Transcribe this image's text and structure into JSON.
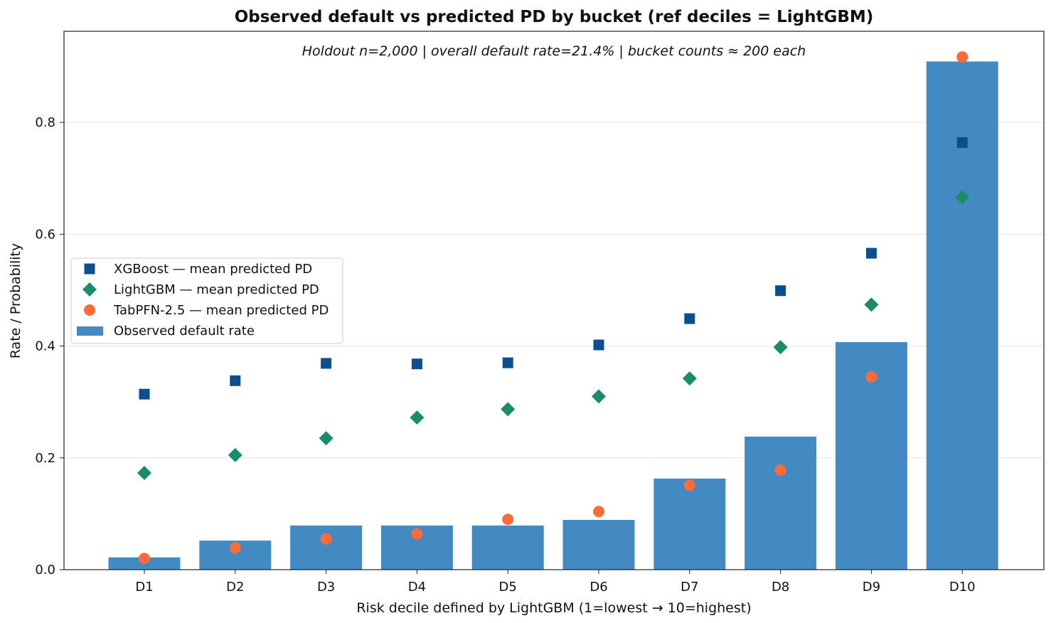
{
  "chart_data": {
    "type": "bar",
    "title": "Observed default vs predicted PD by bucket (ref deciles = LightGBM)",
    "annotation": "Holdout n=2,000 | overall default rate=21.4% | bucket counts ≈ 200 each",
    "xlabel": "Risk decile defined by LightGBM (1=lowest → 10=highest)",
    "ylabel": "Rate / Probability",
    "ylim": [
      0,
      0.963
    ],
    "yticks": [
      0.0,
      0.2,
      0.4,
      0.6,
      0.8
    ],
    "ytick_labels": [
      "0.0",
      "0.2",
      "0.4",
      "0.6",
      "0.8"
    ],
    "grid": "horizontal",
    "legend_position": "center-left",
    "categories": [
      "D1",
      "D2",
      "D3",
      "D4",
      "D5",
      "D6",
      "D7",
      "D8",
      "D9",
      "D10"
    ],
    "series": [
      {
        "name": "XGBoost — mean predicted PD",
        "kind": "scatter",
        "marker": "square",
        "color": "#0b4f8c",
        "values": [
          0.314,
          0.338,
          0.369,
          0.368,
          0.37,
          0.402,
          0.449,
          0.499,
          0.566,
          0.764
        ]
      },
      {
        "name": "LightGBM — mean predicted PD",
        "kind": "scatter",
        "marker": "diamond",
        "color": "#1a8c6a",
        "values": [
          0.173,
          0.205,
          0.235,
          0.272,
          0.287,
          0.31,
          0.342,
          0.398,
          0.474,
          0.666
        ]
      },
      {
        "name": "TabPFN-2.5 — mean predicted PD",
        "kind": "scatter",
        "marker": "circle",
        "color": "#ff6b38",
        "values": [
          0.02,
          0.039,
          0.055,
          0.064,
          0.09,
          0.104,
          0.151,
          0.178,
          0.345,
          0.917
        ]
      },
      {
        "name": "Observed default rate",
        "kind": "bar",
        "color": "#438ac3",
        "values": [
          0.022,
          0.052,
          0.079,
          0.079,
          0.079,
          0.089,
          0.163,
          0.238,
          0.407,
          0.909
        ]
      }
    ]
  }
}
